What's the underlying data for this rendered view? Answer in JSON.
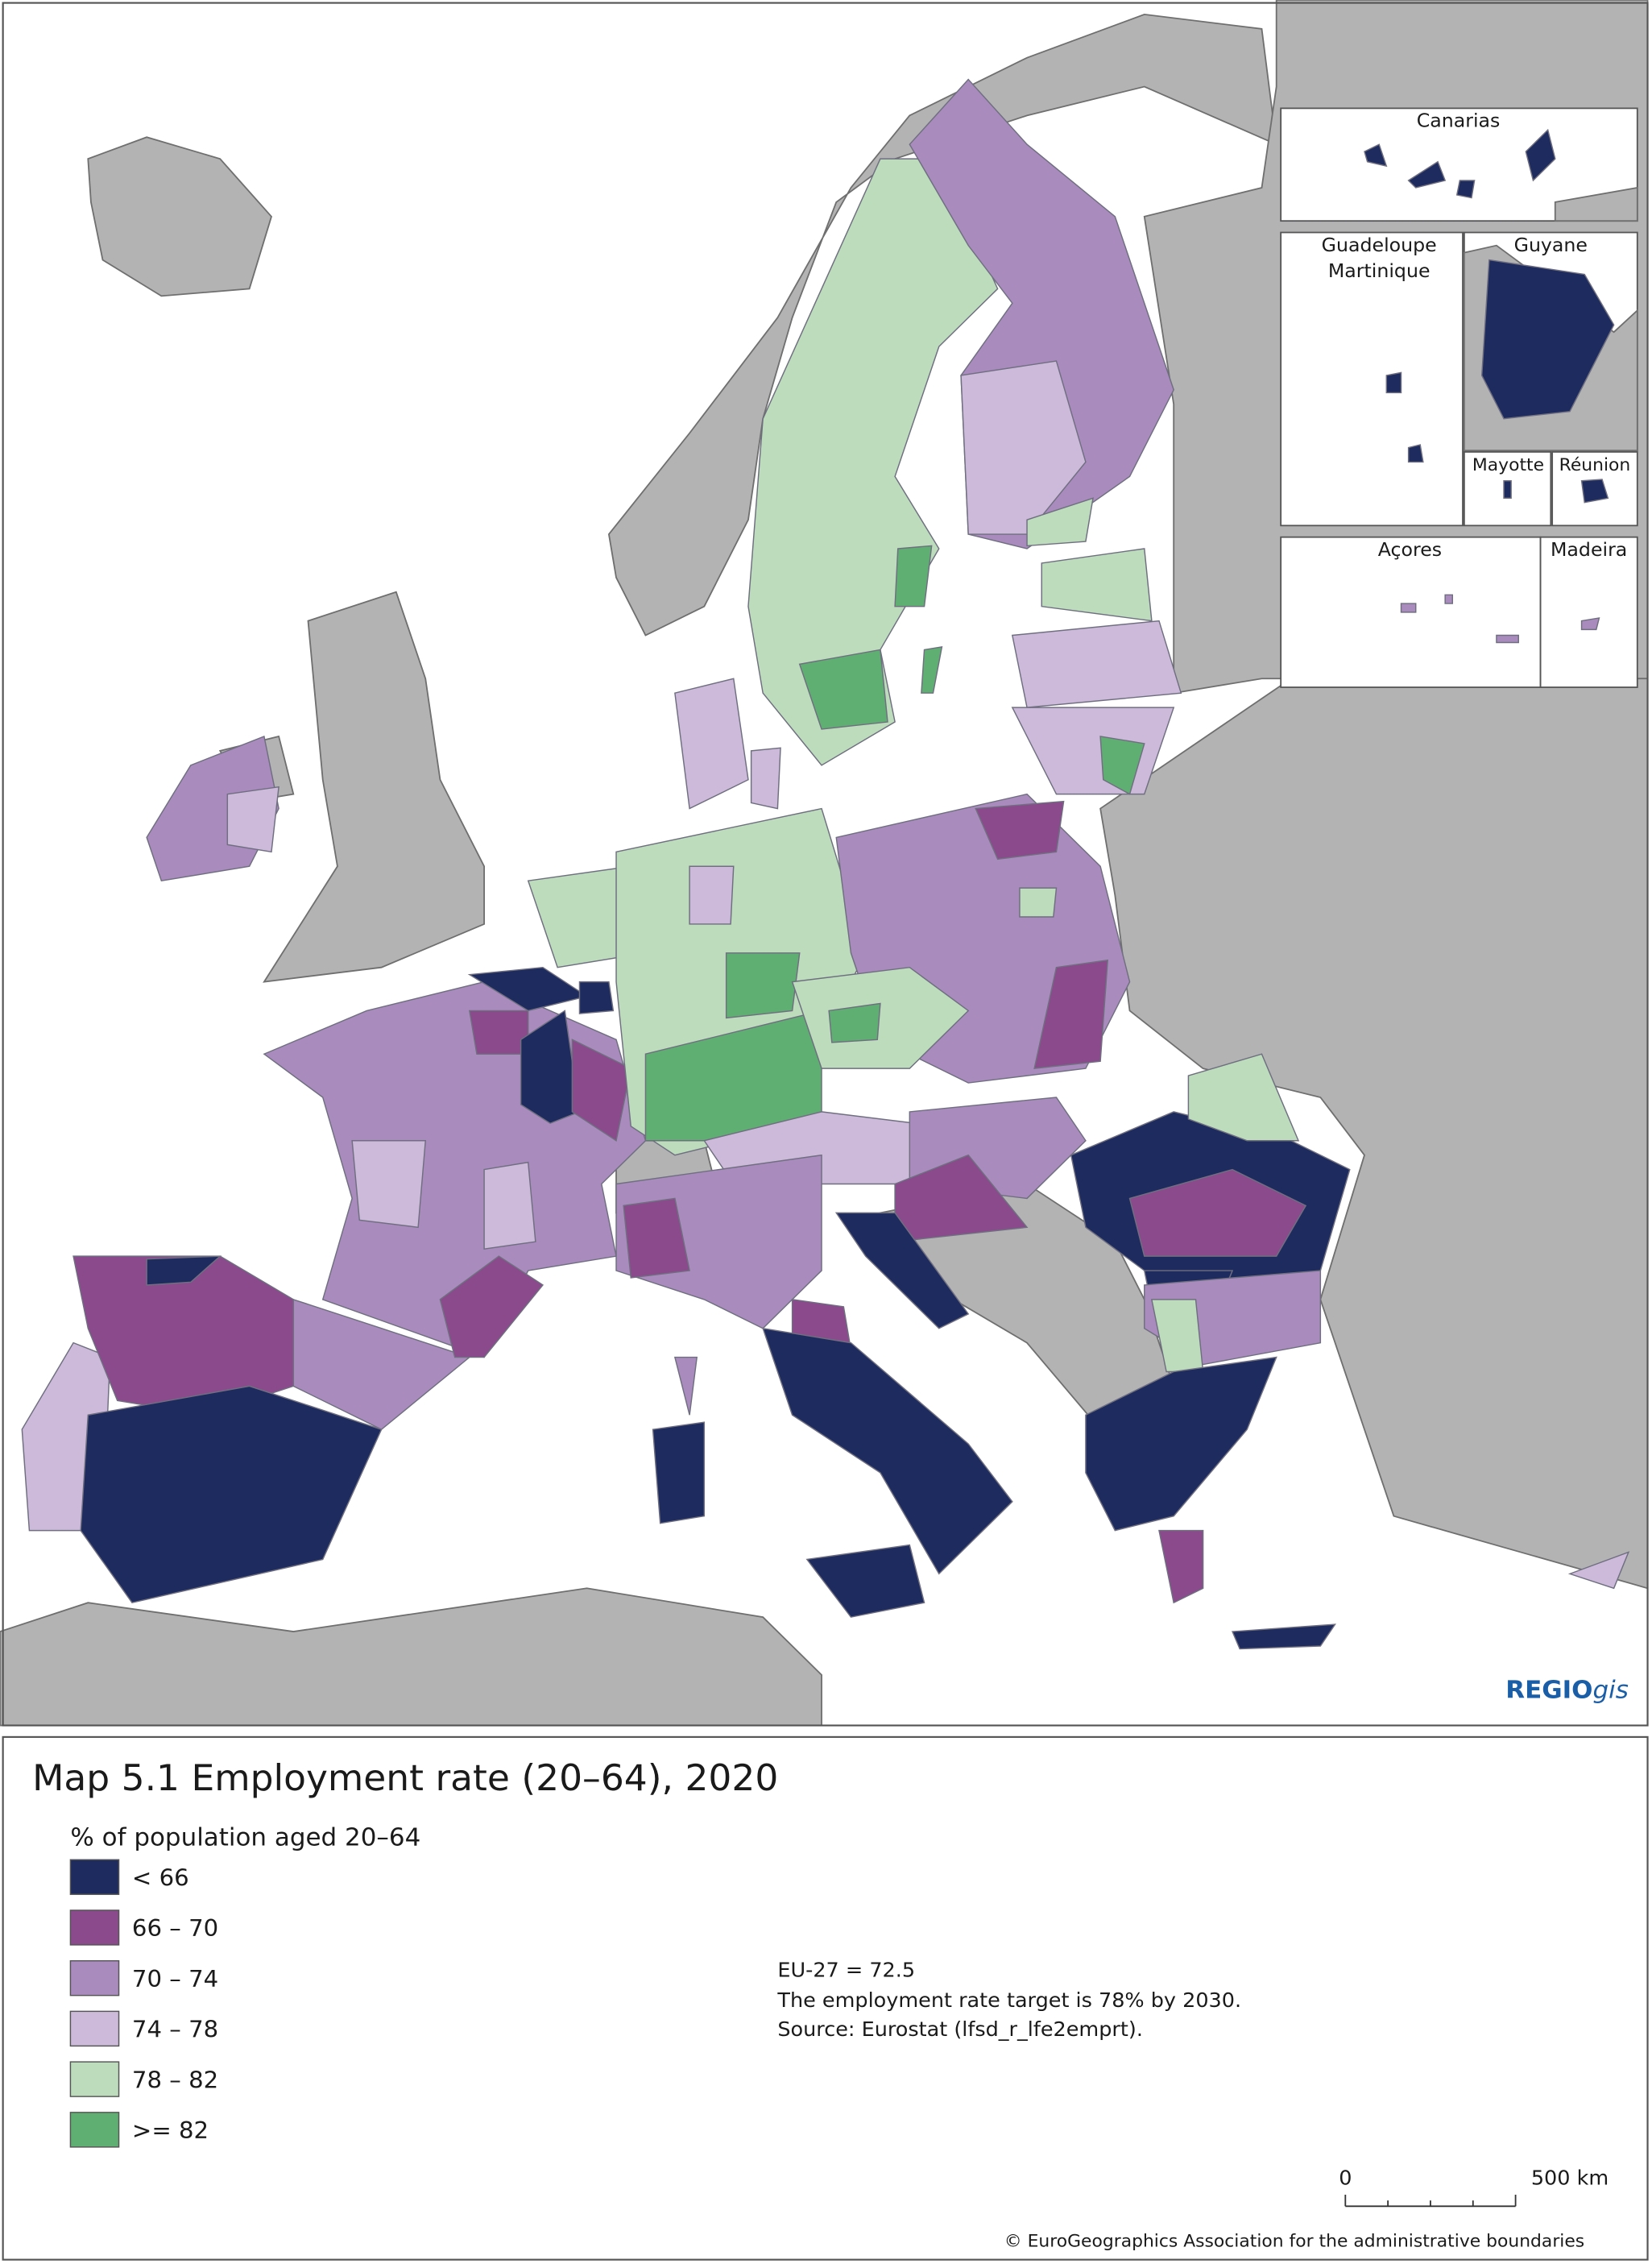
{
  "map": {
    "title": "Map 5.1 Employment rate (20–64), 2020",
    "legend_title": "% of population aged 20–64",
    "legend": [
      {
        "label": "< 66",
        "color": "#1d2b5e"
      },
      {
        "label": "66 – 70",
        "color": "#8a4a8c"
      },
      {
        "label": "70 – 74",
        "color": "#a98bbd"
      },
      {
        "label": "74 – 78",
        "color": "#cdbadb"
      },
      {
        "label": "78 – 82",
        "color": "#bcdcbc"
      },
      {
        "label": ">= 82",
        "color": "#5fae72"
      }
    ],
    "notes": [
      "EU-27 = 72.5",
      "The employment rate target is 78% by 2030.",
      "Source: Eurostat (lfsd_r_lfe2emprt)."
    ],
    "insets": [
      "Canarias",
      "Guadeloupe",
      "Martinique",
      "Guyane",
      "Mayotte",
      "Réunion",
      "Açores",
      "Madeira"
    ],
    "logo": {
      "bold": "REGIO",
      "italic": "gis"
    },
    "scale": [
      "0",
      "500 km"
    ],
    "copyright": "© EuroGeographics Association for the administrative boundaries"
  }
}
